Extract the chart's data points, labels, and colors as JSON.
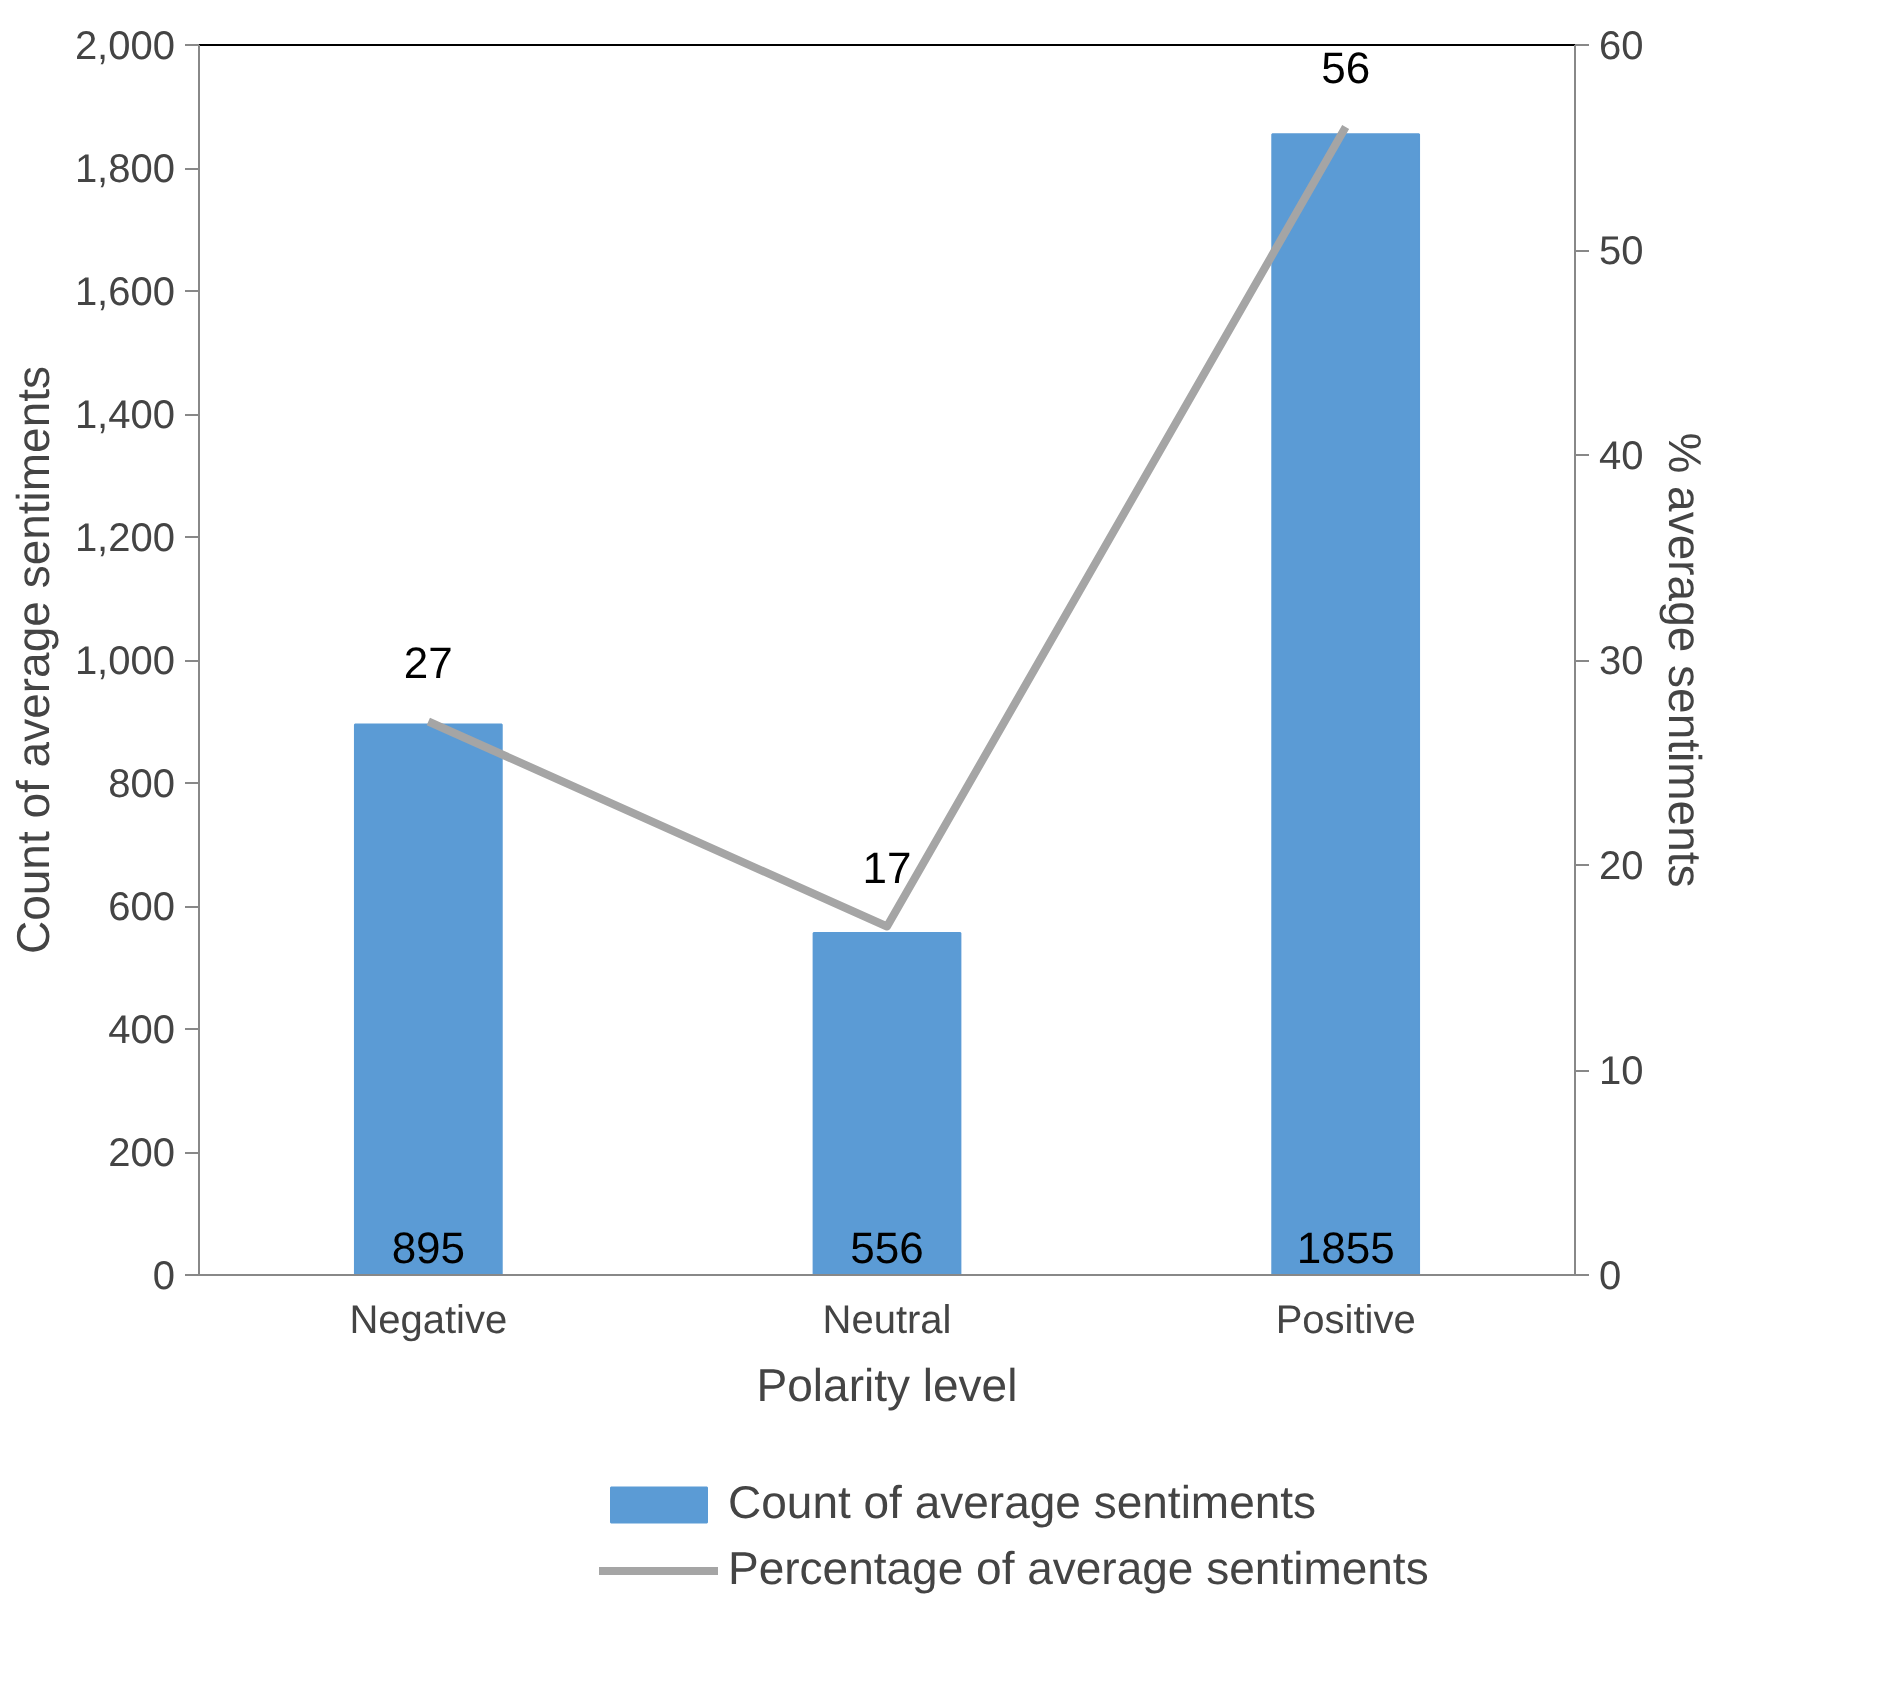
{
  "chart_data": {
    "type": "bar",
    "xlabel": "Polarity level",
    "ylabel": "Count of average sentiments",
    "y2label": "% average sentiments",
    "categories": [
      "Negative",
      "Neutral",
      "Positive"
    ],
    "series": [
      {
        "name": "Count of average sentiments",
        "color": "#5b9bd5",
        "values": [
          895,
          556,
          1855
        ]
      },
      {
        "name": "Percentage of average sentiments",
        "type": "line",
        "axis": "y2",
        "color": "#a5a5a5",
        "values": [
          27,
          17,
          56
        ]
      }
    ],
    "ylim": [
      0,
      2000
    ],
    "yticks": [
      0,
      200,
      400,
      600,
      800,
      {
        "value": 1000,
        "label": "1,000"
      },
      {
        "value": 1200,
        "label": "1,200"
      },
      {
        "value": 1400,
        "label": "1,400"
      },
      {
        "value": 1600,
        "label": "1,600"
      },
      {
        "value": 1800,
        "label": "1,800"
      },
      {
        "value": 2000,
        "label": "2,000"
      }
    ],
    "y2lim": [
      0,
      60
    ],
    "y2ticks": [
      0,
      10,
      20,
      30,
      40,
      50,
      60
    ],
    "data_labels": true,
    "grid": false,
    "legend": "bottom",
    "marker": "none",
    "line_style": "solid"
  }
}
